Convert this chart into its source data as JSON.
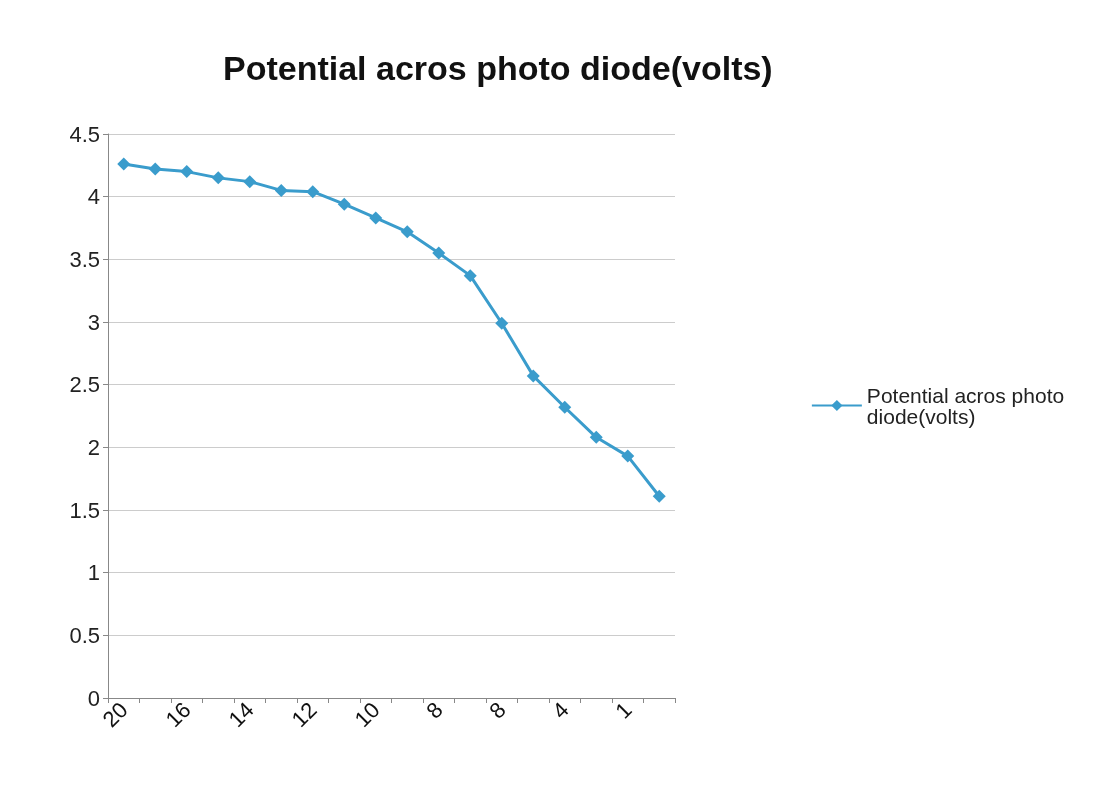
{
  "chart_data": {
    "type": "line",
    "title": "Potential acros photo diode(volts)",
    "categories": [
      "20",
      null,
      "16",
      null,
      "14",
      null,
      "12",
      null,
      "10",
      null,
      "8",
      null,
      "8",
      null,
      "4",
      null,
      "1",
      null
    ],
    "series": [
      {
        "name": "Potential acros photo diode(volts)",
        "color": "#3a9ccc",
        "values": [
          4.26,
          4.22,
          4.2,
          4.15,
          4.12,
          4.05,
          4.04,
          3.94,
          3.83,
          3.72,
          3.55,
          3.37,
          2.99,
          2.57,
          2.32,
          2.08,
          1.93,
          1.61
        ]
      }
    ],
    "ylim": [
      0,
      4.5
    ],
    "yticks": [
      0,
      0.5,
      1,
      1.5,
      2,
      2.5,
      3,
      3.5,
      4,
      4.5
    ],
    "grid": "y",
    "legend": "right",
    "marker": "diamond"
  }
}
